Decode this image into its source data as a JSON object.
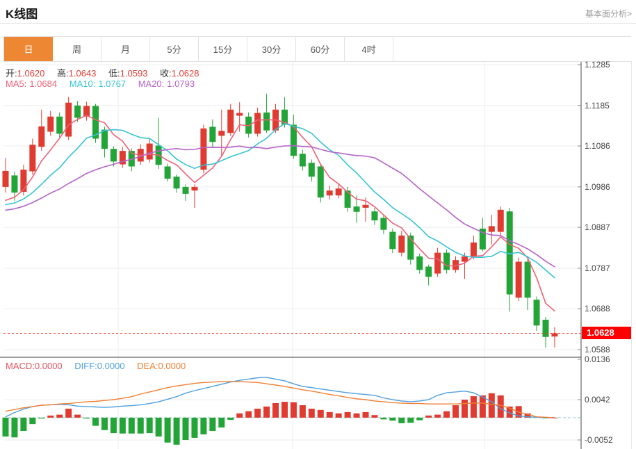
{
  "header": {
    "title": "K线图",
    "link": "基本面分析>"
  },
  "tabs": {
    "items": [
      {
        "id": "day",
        "label": "日",
        "active": true
      },
      {
        "id": "week",
        "label": "周",
        "active": false
      },
      {
        "id": "month",
        "label": "月",
        "active": false
      },
      {
        "id": "5min",
        "label": "5分",
        "active": false
      },
      {
        "id": "15min",
        "label": "15分",
        "active": false
      },
      {
        "id": "30min",
        "label": "30分",
        "active": false
      },
      {
        "id": "60min",
        "label": "60分",
        "active": false
      },
      {
        "id": "4hour",
        "label": "4时",
        "active": false
      }
    ]
  },
  "legend": {
    "open_label": "开:",
    "open": "1.0620",
    "high_label": "高:",
    "high": "1.0643",
    "low_label": "低:",
    "low": "1.0593",
    "close_label": "收:",
    "close": "1.0628",
    "ma5_label": "MA5:",
    "ma5": "1.0684",
    "ma10_label": "MA10:",
    "ma10": "1.0767",
    "ma20_label": "MA20:",
    "ma20": "1.0793"
  },
  "macd_legend": {
    "macd_label": "MACD:",
    "macd": "0.0000",
    "diff_label": "DIFF:",
    "diff": "0.0000",
    "dea_label": "DEA:",
    "dea": "0.0000"
  },
  "axis": {
    "price_ticks": [
      "1.1285",
      "1.1185",
      "1.1086",
      "1.0986",
      "1.0887",
      "1.0787",
      "1.0688",
      "1.0588"
    ],
    "macd_ticks": [
      "0.0136",
      "0.0042",
      "-0.0052"
    ],
    "current_price_label": "1.0628"
  },
  "colors": {
    "accent_orange": "#ED8733",
    "candle_up": "#E03B30",
    "candle_down": "#22A437",
    "ma5": "#EE6177",
    "ma10": "#36C3D5",
    "ma20": "#B562C9",
    "diff_line": "#4F9FDD",
    "dea_line": "#EE8033",
    "price_tag_bg": "#FE0000",
    "current_price_line": "#FF3322",
    "zero_dash": "#9BC9CE",
    "grid": "#EDEDED",
    "axis_line": "#444444"
  },
  "chart_data": {
    "type": "candlestick",
    "title": "K线图",
    "ylabel": "price",
    "y_axis_range": [
      1.0588,
      1.1285
    ],
    "macd_axis_range": [
      -0.0052,
      0.0136
    ],
    "grid": true,
    "legend_position": "top-left",
    "current_price": 1.0628,
    "candles_ohlc": [
      [
        1.0986,
        1.1057,
        1.0972,
        1.1025
      ],
      [
        1.1014,
        1.1023,
        1.0952,
        1.0972
      ],
      [
        1.0974,
        1.104,
        1.0965,
        1.1028
      ],
      [
        1.1024,
        1.1104,
        1.1016,
        1.1089
      ],
      [
        1.1084,
        1.1175,
        1.1074,
        1.1134
      ],
      [
        1.1121,
        1.1172,
        1.1111,
        1.1158
      ],
      [
        1.1158,
        1.1168,
        1.1107,
        1.1116
      ],
      [
        1.1109,
        1.1206,
        1.1101,
        1.1192
      ],
      [
        1.1185,
        1.1196,
        1.1145,
        1.1155
      ],
      [
        1.1158,
        1.1194,
        1.1148,
        1.1184
      ],
      [
        1.1184,
        1.1189,
        1.1094,
        1.1104
      ],
      [
        1.1126,
        1.1133,
        1.1058,
        1.1079
      ],
      [
        1.1079,
        1.1085,
        1.1036,
        1.1048
      ],
      [
        1.1041,
        1.1084,
        1.1033,
        1.1074
      ],
      [
        1.1074,
        1.108,
        1.1024,
        1.1036
      ],
      [
        1.1048,
        1.109,
        1.104,
        1.1079
      ],
      [
        1.1053,
        1.1104,
        1.1046,
        1.1092
      ],
      [
        1.1087,
        1.1155,
        1.103,
        1.104
      ],
      [
        1.1036,
        1.1043,
        1.0999,
        1.1006
      ],
      [
        1.1011,
        1.1016,
        1.0972,
        1.0982
      ],
      [
        1.0986,
        1.0992,
        1.0952,
        1.0969
      ],
      [
        1.0977,
        1.0992,
        1.0935,
        1.0986
      ],
      [
        1.1028,
        1.1138,
        1.1019,
        1.1129
      ],
      [
        1.1133,
        1.1151,
        1.1084,
        1.1096
      ],
      [
        1.1111,
        1.1175,
        1.1062,
        1.1123
      ],
      [
        1.1118,
        1.1189,
        1.1111,
        1.1175
      ],
      [
        1.116,
        1.1193,
        1.1121,
        1.1167
      ],
      [
        1.1158,
        1.1168,
        1.1107,
        1.1116
      ],
      [
        1.1116,
        1.118,
        1.1109,
        1.1167
      ],
      [
        1.1168,
        1.1214,
        1.1118,
        1.1124
      ],
      [
        1.1124,
        1.1189,
        1.1118,
        1.1175
      ],
      [
        1.1175,
        1.1206,
        1.1131,
        1.1138
      ],
      [
        1.1138,
        1.1163,
        1.1055,
        1.1062
      ],
      [
        1.1067,
        1.1077,
        1.1026,
        1.1036
      ],
      [
        1.1045,
        1.1053,
        1.0999,
        1.1011
      ],
      [
        1.1036,
        1.1043,
        1.0948,
        1.096
      ],
      [
        1.0965,
        1.0989,
        1.0955,
        1.0977
      ],
      [
        1.0965,
        1.0992,
        1.0958,
        1.0982
      ],
      [
        1.0977,
        1.0986,
        1.0925,
        1.0935
      ],
      [
        1.0938,
        1.0965,
        1.0898,
        1.0925
      ],
      [
        1.0935,
        1.096,
        1.0901,
        1.0942
      ],
      [
        1.0926,
        1.0935,
        1.0893,
        1.0904
      ],
      [
        1.091,
        1.0918,
        1.0871,
        1.0881
      ],
      [
        1.0876,
        1.0884,
        1.0824,
        1.0834
      ],
      [
        1.0825,
        1.0879,
        1.0816,
        1.0867
      ],
      [
        1.0867,
        1.0874,
        1.0796,
        1.0808
      ],
      [
        1.0816,
        1.0823,
        1.0774,
        1.0783
      ],
      [
        1.0791,
        1.0796,
        1.0745,
        1.0766
      ],
      [
        1.0774,
        1.0837,
        1.0766,
        1.0825
      ],
      [
        1.0825,
        1.0833,
        1.0774,
        1.0783
      ],
      [
        1.0783,
        1.0816,
        1.0776,
        1.0807
      ],
      [
        1.0803,
        1.0825,
        1.0761,
        1.0816
      ],
      [
        1.0816,
        1.0867,
        1.0809,
        1.085
      ],
      [
        1.0884,
        1.091,
        1.0828,
        1.0833
      ],
      [
        1.0876,
        1.0918,
        1.0845,
        1.089
      ],
      [
        1.0876,
        1.0938,
        1.0867,
        1.093
      ],
      [
        1.0926,
        1.0935,
        1.0681,
        1.0723
      ],
      [
        1.0715,
        1.0813,
        1.0707,
        1.0803
      ],
      [
        1.0803,
        1.0809,
        1.0685,
        1.0715
      ],
      [
        1.071,
        1.0718,
        1.0634,
        1.0647
      ],
      [
        1.0661,
        1.0668,
        1.0593,
        1.0619
      ],
      [
        1.062,
        1.0643,
        1.0593,
        1.0628
      ]
    ],
    "ma_periods": [
      5,
      10,
      20
    ],
    "prehistory_closes_for_ma": [
      1.09,
      1.0903,
      1.0906,
      1.0909,
      1.0912,
      1.0915,
      1.0918,
      1.092,
      1.0922,
      1.0925,
      1.0927,
      1.0929,
      1.0931,
      1.0932,
      1.0933,
      1.0934,
      1.0934,
      1.0935,
      1.0935,
      1.0936
    ],
    "macd": {
      "histogram": [
        -0.0044,
        -0.0046,
        -0.0031,
        -0.0015,
        -0.0002,
        0.0005,
        0.0007,
        0.0021,
        0.0007,
        -0.0002,
        -0.0019,
        -0.0029,
        -0.0036,
        -0.0037,
        -0.0037,
        -0.0037,
        -0.0036,
        -0.0044,
        -0.0058,
        -0.0063,
        -0.0052,
        -0.0047,
        -0.0039,
        -0.0031,
        -0.0023,
        -0.0005,
        0.001,
        0.0015,
        0.0021,
        0.0026,
        0.0034,
        0.0037,
        0.0036,
        0.0029,
        0.0021,
        0.0018,
        0.0013,
        0.001,
        0.0013,
        0.001,
        0.0013,
        0.0006,
        -0.0004,
        -0.0007,
        -0.0013,
        -0.0012,
        -0.0006,
        0.0005,
        0.0007,
        0.0015,
        0.0029,
        0.0042,
        0.005,
        0.0052,
        0.0057,
        0.0052,
        0.0026,
        0.0027,
        0.001,
        0.0002,
        -0.0001,
        0.0
      ],
      "diff": [
        0.0002,
        0.0012,
        0.002,
        0.0026,
        0.0029,
        0.003,
        0.0031,
        0.003,
        0.0027,
        0.0026,
        0.0025,
        0.0024,
        0.0025,
        0.0027,
        0.0028,
        0.003,
        0.0033,
        0.0037,
        0.0043,
        0.0049,
        0.0057,
        0.0063,
        0.0068,
        0.0073,
        0.0078,
        0.0083,
        0.0087,
        0.009,
        0.0093,
        0.0094,
        0.009,
        0.0086,
        0.0079,
        0.0073,
        0.007,
        0.0067,
        0.0064,
        0.0061,
        0.0058,
        0.0056,
        0.0054,
        0.0052,
        0.0046,
        0.0042,
        0.0039,
        0.0037,
        0.0039,
        0.0042,
        0.0052,
        0.0058,
        0.006,
        0.0062,
        0.0058,
        0.0048,
        0.0037,
        0.0021,
        0.0011,
        0.0004,
        0.0002,
        0.0001,
        0.0,
        0.0
      ],
      "dea": [
        0.0015,
        0.0019,
        0.0023,
        0.0026,
        0.0029,
        0.003,
        0.0032,
        0.0033,
        0.0035,
        0.0037,
        0.0038,
        0.004,
        0.0042,
        0.0045,
        0.0049,
        0.0055,
        0.006,
        0.0065,
        0.007,
        0.0074,
        0.0077,
        0.008,
        0.0082,
        0.0083,
        0.0084,
        0.0084,
        0.0084,
        0.0083,
        0.0082,
        0.0079,
        0.0076,
        0.0073,
        0.0069,
        0.0065,
        0.0062,
        0.0058,
        0.0054,
        0.0051,
        0.0047,
        0.0044,
        0.0042,
        0.0039,
        0.0037,
        0.0035,
        0.0034,
        0.0033,
        0.0033,
        0.0032,
        0.0032,
        0.0032,
        0.0032,
        0.0033,
        0.0034,
        0.0034,
        0.0031,
        0.0029,
        0.0022,
        0.0013,
        0.0008,
        0.0002,
        0.0001,
        0.0
      ]
    }
  }
}
